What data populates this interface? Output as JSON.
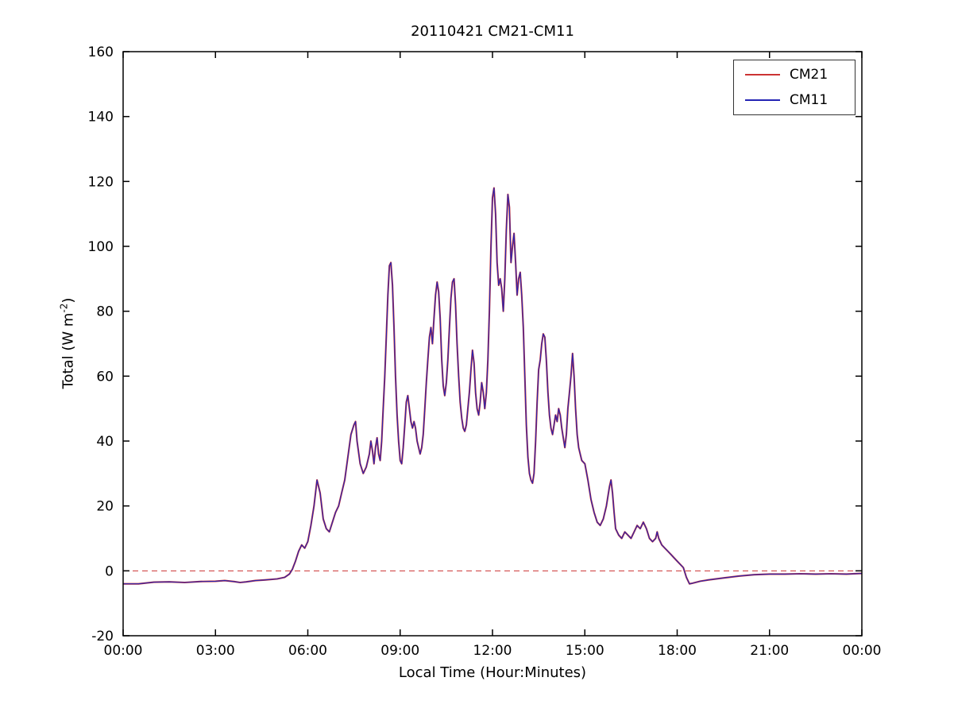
{
  "chart_data": {
    "type": "line",
    "title": "20110421 CM21-CM11",
    "xlabel": "Local Time (Hour:Minutes)",
    "ylabel_prefix": "Total (W m",
    "ylabel_sup": "-2",
    "ylabel_suffix": ")",
    "xlim": [
      0,
      24
    ],
    "ylim": [
      -20,
      160
    ],
    "xticks": [
      {
        "value": 0,
        "label": "00:00"
      },
      {
        "value": 3,
        "label": "03:00"
      },
      {
        "value": 6,
        "label": "06:00"
      },
      {
        "value": 9,
        "label": "09:00"
      },
      {
        "value": 12,
        "label": "12:00"
      },
      {
        "value": 15,
        "label": "15:00"
      },
      {
        "value": 18,
        "label": "18:00"
      },
      {
        "value": 21,
        "label": "21:00"
      },
      {
        "value": 24,
        "label": "00:00"
      }
    ],
    "yticks": [
      -20,
      0,
      20,
      40,
      60,
      80,
      100,
      120,
      140,
      160
    ],
    "grid": false,
    "legend_position": "top-right",
    "zero_line": {
      "y": 0,
      "color": "#cc3333",
      "style": "dashed"
    },
    "series": [
      {
        "name": "CM21",
        "color": "#cc3333"
      },
      {
        "name": "CM11",
        "color": "#2424b4"
      }
    ],
    "points": [
      [
        0,
        -4
      ],
      [
        0.5,
        -4
      ],
      [
        1,
        -3.5
      ],
      [
        1.5,
        -3.4
      ],
      [
        2,
        -3.6
      ],
      [
        2.5,
        -3.3
      ],
      [
        3,
        -3.2
      ],
      [
        3.3,
        -3
      ],
      [
        3.6,
        -3.3
      ],
      [
        3.8,
        -3.6
      ],
      [
        4,
        -3.4
      ],
      [
        4.3,
        -3
      ],
      [
        4.6,
        -2.8
      ],
      [
        5,
        -2.5
      ],
      [
        5.25,
        -2
      ],
      [
        5.4,
        -1
      ],
      [
        5.5,
        0.5
      ],
      [
        5.6,
        3
      ],
      [
        5.7,
        6
      ],
      [
        5.8,
        8
      ],
      [
        5.9,
        7
      ],
      [
        6,
        9
      ],
      [
        6.1,
        14
      ],
      [
        6.2,
        20
      ],
      [
        6.3,
        28
      ],
      [
        6.4,
        24
      ],
      [
        6.5,
        16
      ],
      [
        6.6,
        13
      ],
      [
        6.7,
        12
      ],
      [
        6.8,
        15
      ],
      [
        6.9,
        18
      ],
      [
        7,
        20
      ],
      [
        7.1,
        24
      ],
      [
        7.2,
        28
      ],
      [
        7.3,
        35
      ],
      [
        7.4,
        42
      ],
      [
        7.5,
        45
      ],
      [
        7.55,
        46
      ],
      [
        7.6,
        40
      ],
      [
        7.7,
        33
      ],
      [
        7.8,
        30
      ],
      [
        7.9,
        32
      ],
      [
        8,
        36
      ],
      [
        8.05,
        40
      ],
      [
        8.1,
        37
      ],
      [
        8.15,
        33
      ],
      [
        8.2,
        38
      ],
      [
        8.25,
        41
      ],
      [
        8.3,
        36
      ],
      [
        8.35,
        34
      ],
      [
        8.4,
        40
      ],
      [
        8.45,
        50
      ],
      [
        8.5,
        60
      ],
      [
        8.55,
        72
      ],
      [
        8.6,
        85
      ],
      [
        8.65,
        94
      ],
      [
        8.7,
        95
      ],
      [
        8.75,
        88
      ],
      [
        8.8,
        75
      ],
      [
        8.85,
        60
      ],
      [
        8.9,
        48
      ],
      [
        8.95,
        40
      ],
      [
        9,
        34
      ],
      [
        9.05,
        33
      ],
      [
        9.1,
        38
      ],
      [
        9.15,
        45
      ],
      [
        9.2,
        52
      ],
      [
        9.25,
        54
      ],
      [
        9.3,
        50
      ],
      [
        9.35,
        46
      ],
      [
        9.4,
        44
      ],
      [
        9.45,
        46
      ],
      [
        9.5,
        44
      ],
      [
        9.55,
        40
      ],
      [
        9.6,
        38
      ],
      [
        9.65,
        36
      ],
      [
        9.7,
        38
      ],
      [
        9.75,
        42
      ],
      [
        9.8,
        50
      ],
      [
        9.85,
        58
      ],
      [
        9.9,
        65
      ],
      [
        9.95,
        72
      ],
      [
        10,
        75
      ],
      [
        10.05,
        70
      ],
      [
        10.1,
        78
      ],
      [
        10.15,
        85
      ],
      [
        10.2,
        89
      ],
      [
        10.25,
        86
      ],
      [
        10.3,
        78
      ],
      [
        10.35,
        65
      ],
      [
        10.4,
        57
      ],
      [
        10.45,
        54
      ],
      [
        10.5,
        58
      ],
      [
        10.55,
        65
      ],
      [
        10.6,
        75
      ],
      [
        10.65,
        84
      ],
      [
        10.7,
        89
      ],
      [
        10.75,
        90
      ],
      [
        10.8,
        82
      ],
      [
        10.85,
        70
      ],
      [
        10.9,
        60
      ],
      [
        10.95,
        52
      ],
      [
        11,
        47
      ],
      [
        11.05,
        44
      ],
      [
        11.1,
        43
      ],
      [
        11.15,
        45
      ],
      [
        11.2,
        50
      ],
      [
        11.25,
        55
      ],
      [
        11.3,
        62
      ],
      [
        11.35,
        68
      ],
      [
        11.4,
        64
      ],
      [
        11.45,
        55
      ],
      [
        11.5,
        50
      ],
      [
        11.55,
        48
      ],
      [
        11.6,
        52
      ],
      [
        11.65,
        58
      ],
      [
        11.7,
        55
      ],
      [
        11.75,
        50
      ],
      [
        11.8,
        55
      ],
      [
        11.85,
        65
      ],
      [
        11.9,
        80
      ],
      [
        11.95,
        100
      ],
      [
        12,
        115
      ],
      [
        12.05,
        118
      ],
      [
        12.1,
        110
      ],
      [
        12.15,
        95
      ],
      [
        12.2,
        88
      ],
      [
        12.25,
        90
      ],
      [
        12.3,
        87
      ],
      [
        12.35,
        80
      ],
      [
        12.4,
        90
      ],
      [
        12.45,
        105
      ],
      [
        12.5,
        116
      ],
      [
        12.55,
        112
      ],
      [
        12.6,
        95
      ],
      [
        12.65,
        100
      ],
      [
        12.7,
        104
      ],
      [
        12.75,
        95
      ],
      [
        12.8,
        85
      ],
      [
        12.85,
        90
      ],
      [
        12.9,
        92
      ],
      [
        12.95,
        85
      ],
      [
        13,
        75
      ],
      [
        13.05,
        60
      ],
      [
        13.1,
        45
      ],
      [
        13.15,
        35
      ],
      [
        13.2,
        30
      ],
      [
        13.25,
        28
      ],
      [
        13.3,
        27
      ],
      [
        13.35,
        30
      ],
      [
        13.4,
        40
      ],
      [
        13.45,
        52
      ],
      [
        13.5,
        62
      ],
      [
        13.55,
        65
      ],
      [
        13.6,
        70
      ],
      [
        13.65,
        73
      ],
      [
        13.7,
        72
      ],
      [
        13.75,
        65
      ],
      [
        13.8,
        55
      ],
      [
        13.85,
        48
      ],
      [
        13.9,
        44
      ],
      [
        13.95,
        42
      ],
      [
        14,
        45
      ],
      [
        14.05,
        48
      ],
      [
        14.1,
        46
      ],
      [
        14.15,
        50
      ],
      [
        14.2,
        48
      ],
      [
        14.25,
        44
      ],
      [
        14.3,
        41
      ],
      [
        14.35,
        38
      ],
      [
        14.4,
        42
      ],
      [
        14.45,
        50
      ],
      [
        14.5,
        55
      ],
      [
        14.55,
        60
      ],
      [
        14.6,
        67
      ],
      [
        14.65,
        60
      ],
      [
        14.7,
        50
      ],
      [
        14.75,
        42
      ],
      [
        14.8,
        38
      ],
      [
        14.85,
        36
      ],
      [
        14.9,
        34
      ],
      [
        15,
        33
      ],
      [
        15.1,
        28
      ],
      [
        15.2,
        22
      ],
      [
        15.3,
        18
      ],
      [
        15.4,
        15
      ],
      [
        15.5,
        14
      ],
      [
        15.6,
        16
      ],
      [
        15.7,
        20
      ],
      [
        15.8,
        26
      ],
      [
        15.85,
        28
      ],
      [
        15.9,
        24
      ],
      [
        15.95,
        18
      ],
      [
        16,
        13
      ],
      [
        16.1,
        11
      ],
      [
        16.2,
        10
      ],
      [
        16.3,
        12
      ],
      [
        16.4,
        11
      ],
      [
        16.5,
        10
      ],
      [
        16.6,
        12
      ],
      [
        16.7,
        14
      ],
      [
        16.8,
        13
      ],
      [
        16.9,
        15
      ],
      [
        17,
        13
      ],
      [
        17.1,
        10
      ],
      [
        17.2,
        9
      ],
      [
        17.3,
        10
      ],
      [
        17.35,
        12
      ],
      [
        17.4,
        10
      ],
      [
        17.5,
        8
      ],
      [
        17.6,
        7
      ],
      [
        17.7,
        6
      ],
      [
        17.8,
        5
      ],
      [
        17.9,
        4
      ],
      [
        18,
        3
      ],
      [
        18.1,
        2
      ],
      [
        18.2,
        1
      ],
      [
        18.3,
        -2
      ],
      [
        18.4,
        -4
      ],
      [
        18.5,
        -3.8
      ],
      [
        18.75,
        -3.2
      ],
      [
        19,
        -2.8
      ],
      [
        19.5,
        -2.2
      ],
      [
        20,
        -1.6
      ],
      [
        20.5,
        -1.2
      ],
      [
        21,
        -1
      ],
      [
        21.5,
        -1
      ],
      [
        22,
        -0.9
      ],
      [
        22.5,
        -1
      ],
      [
        23,
        -0.9
      ],
      [
        23.5,
        -1
      ],
      [
        24,
        -0.8
      ]
    ]
  }
}
